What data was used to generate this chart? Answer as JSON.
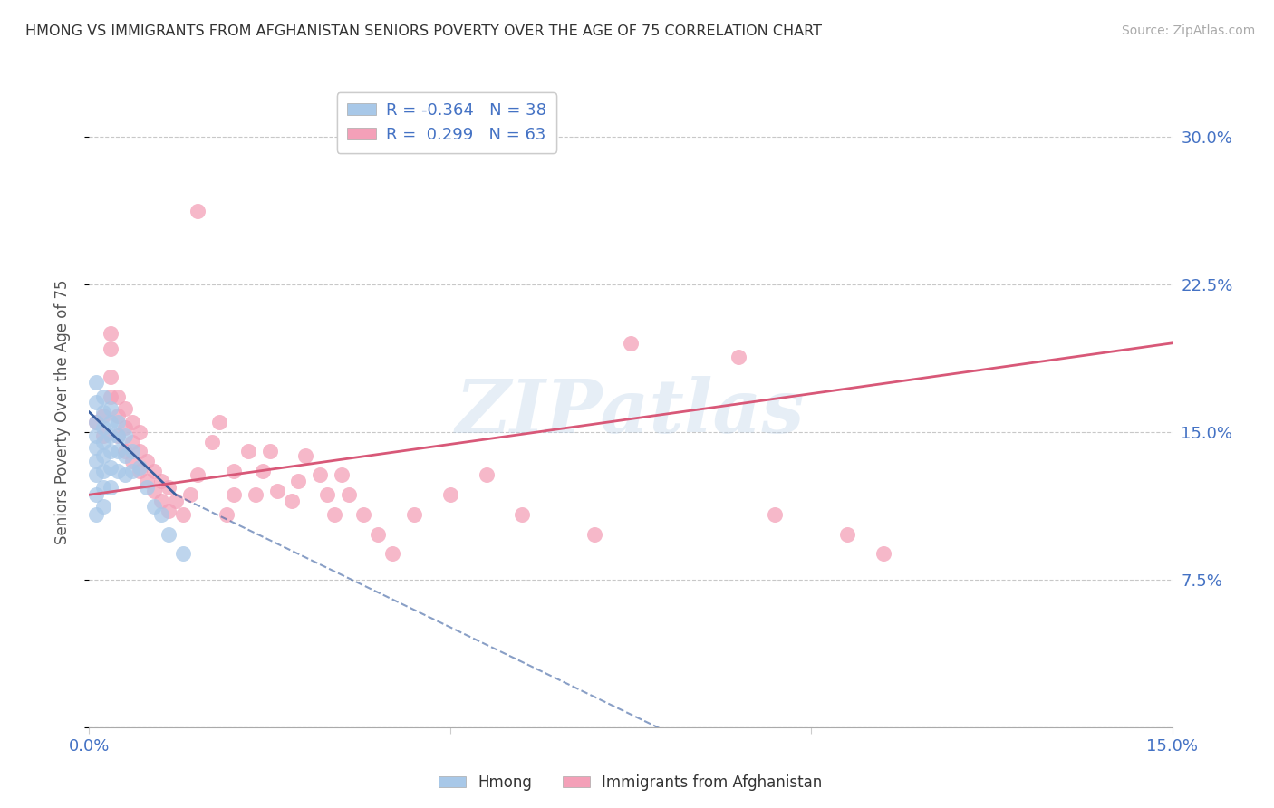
{
  "title": "HMONG VS IMMIGRANTS FROM AFGHANISTAN SENIORS POVERTY OVER THE AGE OF 75 CORRELATION CHART",
  "source": "Source: ZipAtlas.com",
  "ylabel": "Seniors Poverty Over the Age of 75",
  "xlim": [
    0.0,
    0.15
  ],
  "ylim": [
    0.0,
    0.32
  ],
  "xticks": [
    0.0,
    0.05,
    0.1,
    0.15
  ],
  "xtick_labels": [
    "0.0%",
    "",
    "",
    "15.0%"
  ],
  "ytick_right_vals": [
    0.0,
    0.075,
    0.15,
    0.225,
    0.3
  ],
  "ytick_right_labels": [
    "",
    "7.5%",
    "15.0%",
    "22.5%",
    "30.0%"
  ],
  "grid_color": "#c8c8c8",
  "background_color": "#ffffff",
  "watermark": "ZIPatlas",
  "hmong_color": "#a8c8e8",
  "hmong_line_color": "#3a5fa0",
  "afghan_color": "#f4a0b8",
  "afghan_line_color": "#d85878",
  "R_hmong": -0.364,
  "N_hmong": 38,
  "R_afghan": 0.299,
  "N_afghan": 63,
  "hmong_label": "Hmong",
  "afghan_label": "Immigrants from Afghanistan",
  "hmong_points": [
    [
      0.001,
      0.175
    ],
    [
      0.001,
      0.165
    ],
    [
      0.001,
      0.155
    ],
    [
      0.001,
      0.148
    ],
    [
      0.001,
      0.142
    ],
    [
      0.001,
      0.135
    ],
    [
      0.001,
      0.128
    ],
    [
      0.001,
      0.118
    ],
    [
      0.001,
      0.108
    ],
    [
      0.002,
      0.168
    ],
    [
      0.002,
      0.16
    ],
    [
      0.002,
      0.152
    ],
    [
      0.002,
      0.145
    ],
    [
      0.002,
      0.138
    ],
    [
      0.002,
      0.13
    ],
    [
      0.002,
      0.122
    ],
    [
      0.002,
      0.112
    ],
    [
      0.003,
      0.162
    ],
    [
      0.003,
      0.155
    ],
    [
      0.003,
      0.148
    ],
    [
      0.003,
      0.14
    ],
    [
      0.003,
      0.132
    ],
    [
      0.003,
      0.122
    ],
    [
      0.004,
      0.155
    ],
    [
      0.004,
      0.148
    ],
    [
      0.004,
      0.14
    ],
    [
      0.004,
      0.13
    ],
    [
      0.005,
      0.148
    ],
    [
      0.005,
      0.138
    ],
    [
      0.005,
      0.128
    ],
    [
      0.006,
      0.14
    ],
    [
      0.006,
      0.13
    ],
    [
      0.007,
      0.132
    ],
    [
      0.008,
      0.122
    ],
    [
      0.009,
      0.112
    ],
    [
      0.01,
      0.108
    ],
    [
      0.011,
      0.098
    ],
    [
      0.013,
      0.088
    ]
  ],
  "hmong_trendline_solid": [
    [
      0.0,
      0.16
    ],
    [
      0.012,
      0.118
    ]
  ],
  "hmong_trendline_dashed": [
    [
      0.012,
      0.118
    ],
    [
      0.09,
      -0.02
    ]
  ],
  "afghan_points": [
    [
      0.001,
      0.155
    ],
    [
      0.002,
      0.148
    ],
    [
      0.002,
      0.158
    ],
    [
      0.003,
      0.168
    ],
    [
      0.003,
      0.178
    ],
    [
      0.003,
      0.192
    ],
    [
      0.003,
      0.2
    ],
    [
      0.004,
      0.148
    ],
    [
      0.004,
      0.158
    ],
    [
      0.004,
      0.168
    ],
    [
      0.005,
      0.14
    ],
    [
      0.005,
      0.152
    ],
    [
      0.005,
      0.162
    ],
    [
      0.006,
      0.135
    ],
    [
      0.006,
      0.145
    ],
    [
      0.006,
      0.155
    ],
    [
      0.007,
      0.13
    ],
    [
      0.007,
      0.14
    ],
    [
      0.007,
      0.15
    ],
    [
      0.008,
      0.125
    ],
    [
      0.008,
      0.135
    ],
    [
      0.009,
      0.12
    ],
    [
      0.009,
      0.13
    ],
    [
      0.01,
      0.115
    ],
    [
      0.01,
      0.125
    ],
    [
      0.011,
      0.11
    ],
    [
      0.011,
      0.122
    ],
    [
      0.012,
      0.115
    ],
    [
      0.013,
      0.108
    ],
    [
      0.014,
      0.118
    ],
    [
      0.015,
      0.128
    ],
    [
      0.015,
      0.262
    ],
    [
      0.017,
      0.145
    ],
    [
      0.018,
      0.155
    ],
    [
      0.019,
      0.108
    ],
    [
      0.02,
      0.118
    ],
    [
      0.02,
      0.13
    ],
    [
      0.022,
      0.14
    ],
    [
      0.023,
      0.118
    ],
    [
      0.024,
      0.13
    ],
    [
      0.025,
      0.14
    ],
    [
      0.026,
      0.12
    ],
    [
      0.028,
      0.115
    ],
    [
      0.029,
      0.125
    ],
    [
      0.03,
      0.138
    ],
    [
      0.032,
      0.128
    ],
    [
      0.033,
      0.118
    ],
    [
      0.034,
      0.108
    ],
    [
      0.035,
      0.128
    ],
    [
      0.036,
      0.118
    ],
    [
      0.038,
      0.108
    ],
    [
      0.04,
      0.098
    ],
    [
      0.042,
      0.088
    ],
    [
      0.045,
      0.108
    ],
    [
      0.05,
      0.118
    ],
    [
      0.055,
      0.128
    ],
    [
      0.06,
      0.108
    ],
    [
      0.07,
      0.098
    ],
    [
      0.075,
      0.195
    ],
    [
      0.09,
      0.188
    ],
    [
      0.095,
      0.108
    ],
    [
      0.105,
      0.098
    ],
    [
      0.11,
      0.088
    ]
  ],
  "afghan_trendline": [
    [
      0.0,
      0.118
    ],
    [
      0.15,
      0.195
    ]
  ]
}
